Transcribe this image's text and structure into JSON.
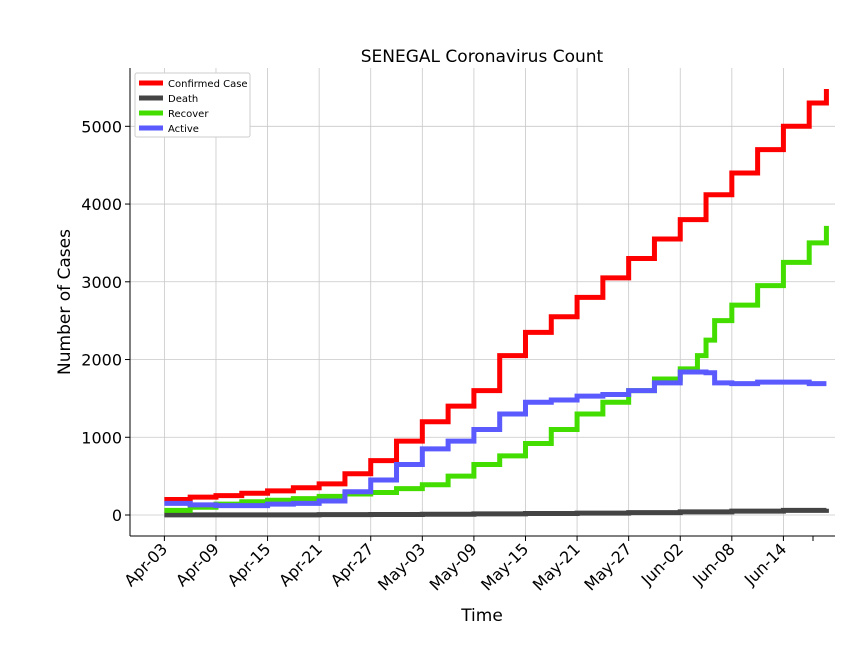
{
  "chart_data": {
    "type": "line",
    "title": "SENEGAL Coronavirus Count",
    "xlabel": "Time",
    "ylabel": "Number of Cases",
    "x_ticks": [
      "Apr-03",
      "Apr-09",
      "Apr-15",
      "Apr-21",
      "Apr-27",
      "May-03",
      "May-09",
      "May-15",
      "May-21",
      "May-27",
      "Jun-02",
      "Jun-08",
      "Jun-14"
    ],
    "x_tick_days": [
      0,
      6,
      12,
      18,
      24,
      30,
      36,
      42,
      48,
      54,
      60,
      66,
      72
    ],
    "xlim": [
      -4,
      78
    ],
    "ylim": [
      -270,
      5750
    ],
    "y_ticks": [
      0,
      1000,
      2000,
      3000,
      4000,
      5000
    ],
    "grid": true,
    "legend": "top-left",
    "series": [
      {
        "name": "Confirmed Case",
        "color": "#ff0000",
        "x": [
          0,
          3,
          6,
          9,
          12,
          15,
          18,
          21,
          24,
          27,
          30,
          33,
          36,
          39,
          42,
          45,
          48,
          51,
          54,
          57,
          60,
          63,
          66,
          69,
          72,
          75,
          77
        ],
        "y": [
          200,
          230,
          250,
          280,
          310,
          350,
          400,
          530,
          700,
          950,
          1200,
          1400,
          1600,
          2050,
          2350,
          2550,
          2800,
          3050,
          3300,
          3550,
          3800,
          4120,
          4400,
          4700,
          5000,
          5300,
          5480
        ]
      },
      {
        "name": "Death",
        "color": "#444444",
        "x": [
          0,
          6,
          12,
          18,
          24,
          30,
          36,
          42,
          48,
          54,
          60,
          66,
          72,
          77
        ],
        "y": [
          1,
          2,
          2,
          5,
          7,
          10,
          15,
          20,
          25,
          30,
          40,
          50,
          60,
          80
        ]
      },
      {
        "name": "Recover",
        "color": "#44dd00",
        "x": [
          0,
          3,
          6,
          9,
          12,
          15,
          18,
          21,
          24,
          27,
          30,
          33,
          36,
          39,
          42,
          45,
          48,
          51,
          54,
          57,
          60,
          62,
          63,
          64,
          66,
          69,
          72,
          75,
          77
        ],
        "y": [
          60,
          100,
          140,
          170,
          190,
          210,
          240,
          270,
          290,
          340,
          390,
          500,
          650,
          760,
          920,
          1100,
          1300,
          1450,
          1600,
          1750,
          1880,
          2050,
          2250,
          2500,
          2700,
          2950,
          3250,
          3500,
          3720
        ]
      },
      {
        "name": "Active",
        "color": "#5a5aff",
        "x": [
          0,
          3,
          6,
          9,
          12,
          15,
          18,
          21,
          24,
          27,
          30,
          33,
          36,
          39,
          42,
          45,
          48,
          51,
          54,
          57,
          60,
          63,
          64,
          66,
          69,
          72,
          75,
          77
        ],
        "y": [
          150,
          130,
          120,
          120,
          140,
          150,
          180,
          300,
          450,
          650,
          850,
          950,
          1100,
          1300,
          1450,
          1480,
          1530,
          1550,
          1600,
          1700,
          1840,
          1830,
          1700,
          1690,
          1710,
          1710,
          1690,
          1690
        ]
      }
    ]
  }
}
